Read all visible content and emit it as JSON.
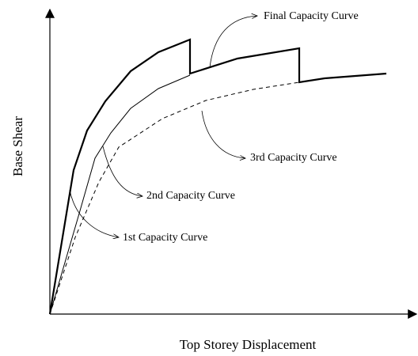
{
  "labels": {
    "final": "Final Capacity Curve",
    "third": "3rd Capacity Curve",
    "second": "2nd Capacity Curve",
    "first": "1st Capacity Curve"
  },
  "axes": {
    "y": "Base Shear",
    "x": "Top Storey Displacement"
  }
}
